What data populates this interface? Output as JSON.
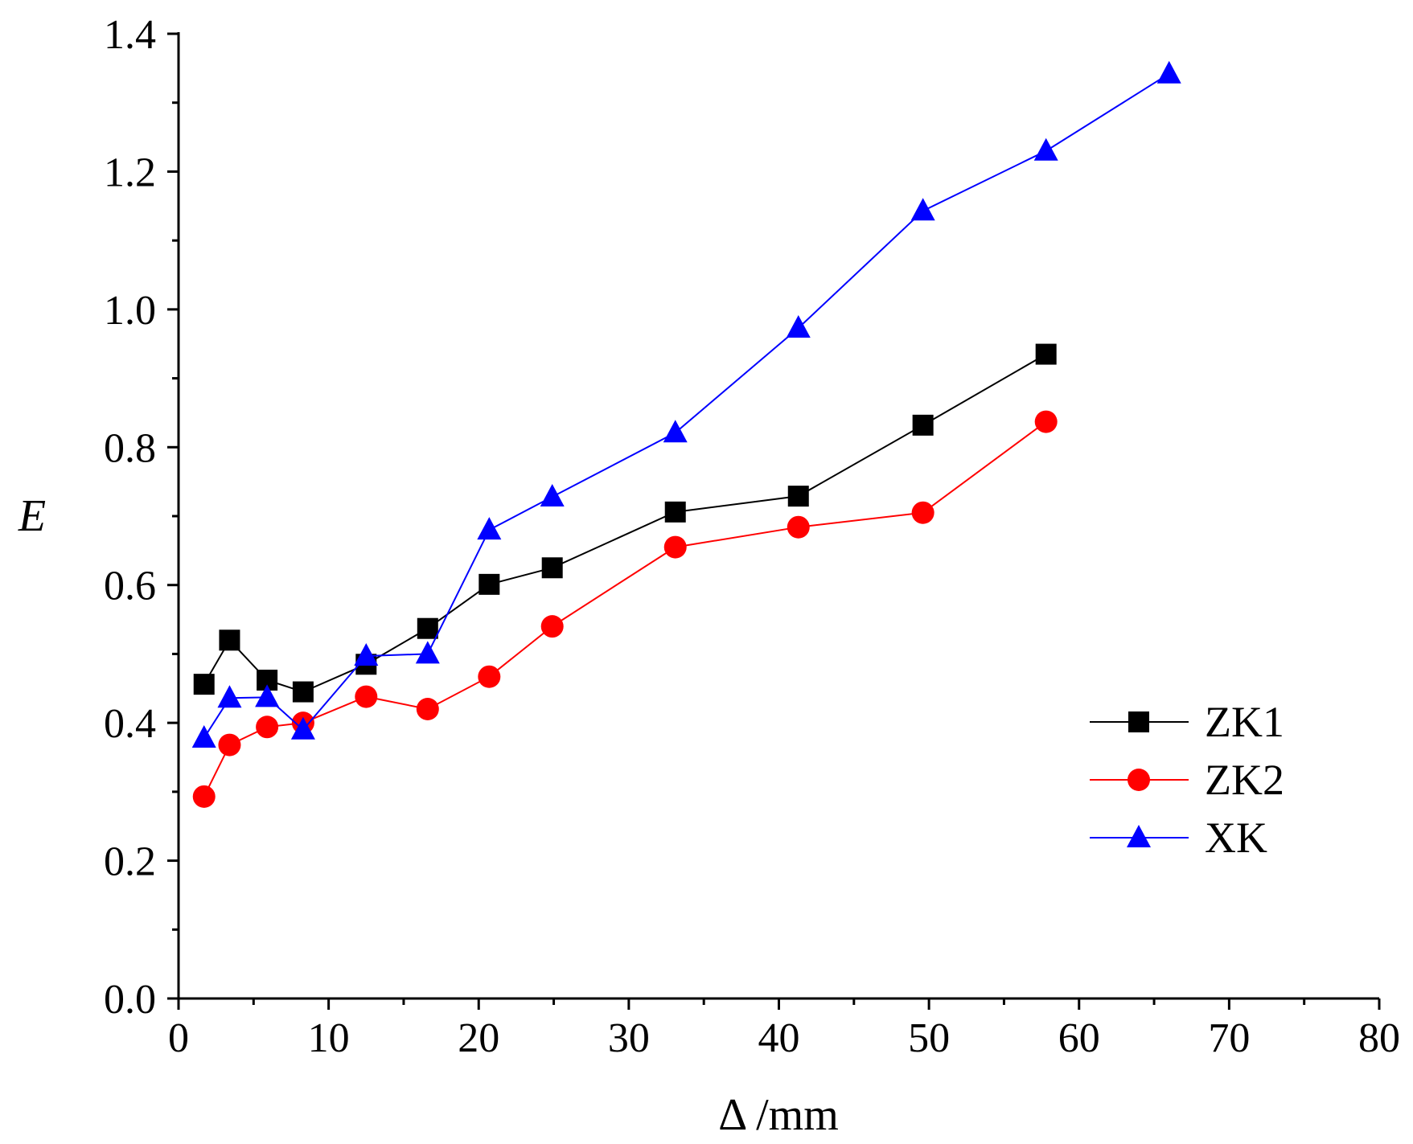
{
  "chart_data": {
    "type": "line",
    "xlabel": "Δ /mm",
    "ylabel": "E",
    "xlim": [
      0,
      80
    ],
    "ylim": [
      0.0,
      1.4
    ],
    "x_ticks": [
      "0",
      "10",
      "20",
      "30",
      "40",
      "50",
      "60",
      "70",
      "80"
    ],
    "y_ticks": [
      "0.0",
      "0.2",
      "0.4",
      "0.6",
      "0.8",
      "1.0",
      "1.2",
      "1.4"
    ],
    "grid": false,
    "legend_position": "lower-right",
    "series": [
      {
        "name": "ZK1",
        "color": "#000000",
        "marker": "square",
        "x": [
          1.7,
          3.4,
          5.9,
          8.3,
          12.5,
          16.6,
          20.7,
          24.9,
          33.1,
          41.3,
          49.6,
          57.8
        ],
        "y": [
          0.456,
          0.52,
          0.462,
          0.445,
          0.485,
          0.537,
          0.601,
          0.625,
          0.706,
          0.729,
          0.832,
          0.935
        ]
      },
      {
        "name": "ZK2",
        "color": "#ff0000",
        "marker": "circle",
        "x": [
          1.7,
          3.4,
          5.9,
          8.3,
          12.5,
          16.6,
          20.7,
          24.9,
          33.1,
          41.3,
          49.6,
          57.8
        ],
        "y": [
          0.293,
          0.368,
          0.394,
          0.4,
          0.438,
          0.42,
          0.467,
          0.54,
          0.655,
          0.684,
          0.705,
          0.837
        ]
      },
      {
        "name": "XK",
        "color": "#0000ff",
        "marker": "triangle",
        "x": [
          1.7,
          3.4,
          5.9,
          8.3,
          12.5,
          16.6,
          20.7,
          24.9,
          33.1,
          41.3,
          49.6,
          57.8,
          66.0
        ],
        "y": [
          0.378,
          0.436,
          0.437,
          0.39,
          0.497,
          0.5,
          0.68,
          0.728,
          0.821,
          0.973,
          1.143,
          1.23,
          1.342
        ]
      }
    ]
  }
}
